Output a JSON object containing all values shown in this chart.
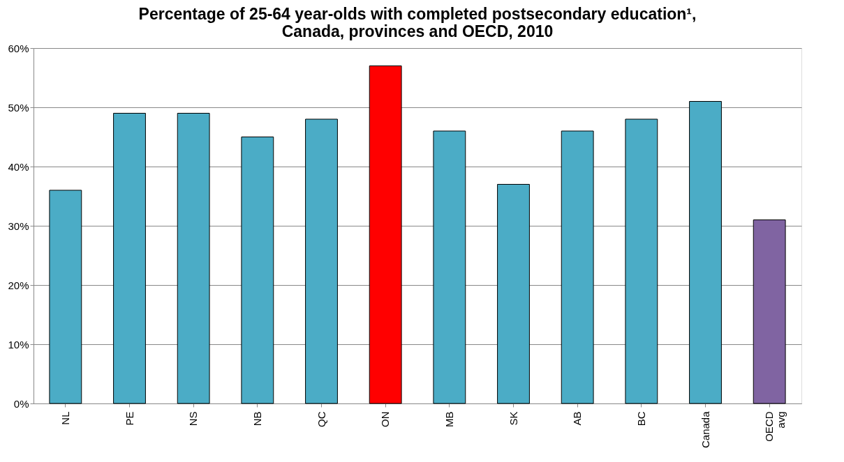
{
  "chart_data": {
    "type": "bar",
    "title": "Percentage of 25-64 year-olds with completed postsecondary education¹, Canada, provinces and OECD, 2010",
    "categories": [
      "NL",
      "PE",
      "NS",
      "NB",
      "QC",
      "ON",
      "MB",
      "SK",
      "AB",
      "BC",
      "Canada",
      "OECD avg"
    ],
    "values": [
      36,
      49,
      49,
      45,
      48,
      57,
      46,
      37,
      46,
      48,
      51,
      31
    ],
    "colors": [
      "#4bacc6",
      "#4bacc6",
      "#4bacc6",
      "#4bacc6",
      "#4bacc6",
      "#ff0000",
      "#4bacc6",
      "#4bacc6",
      "#4bacc6",
      "#4bacc6",
      "#4bacc6",
      "#8064a2"
    ],
    "ylim": [
      0,
      60
    ],
    "yticks": [
      {
        "value": 0,
        "label": "0%"
      },
      {
        "value": 10,
        "label": "10%"
      },
      {
        "value": 20,
        "label": "20%"
      },
      {
        "value": 30,
        "label": "30%"
      },
      {
        "value": 40,
        "label": "40%"
      },
      {
        "value": 50,
        "label": "50%"
      },
      {
        "value": 60,
        "label": "60%"
      }
    ],
    "grid": "y"
  }
}
